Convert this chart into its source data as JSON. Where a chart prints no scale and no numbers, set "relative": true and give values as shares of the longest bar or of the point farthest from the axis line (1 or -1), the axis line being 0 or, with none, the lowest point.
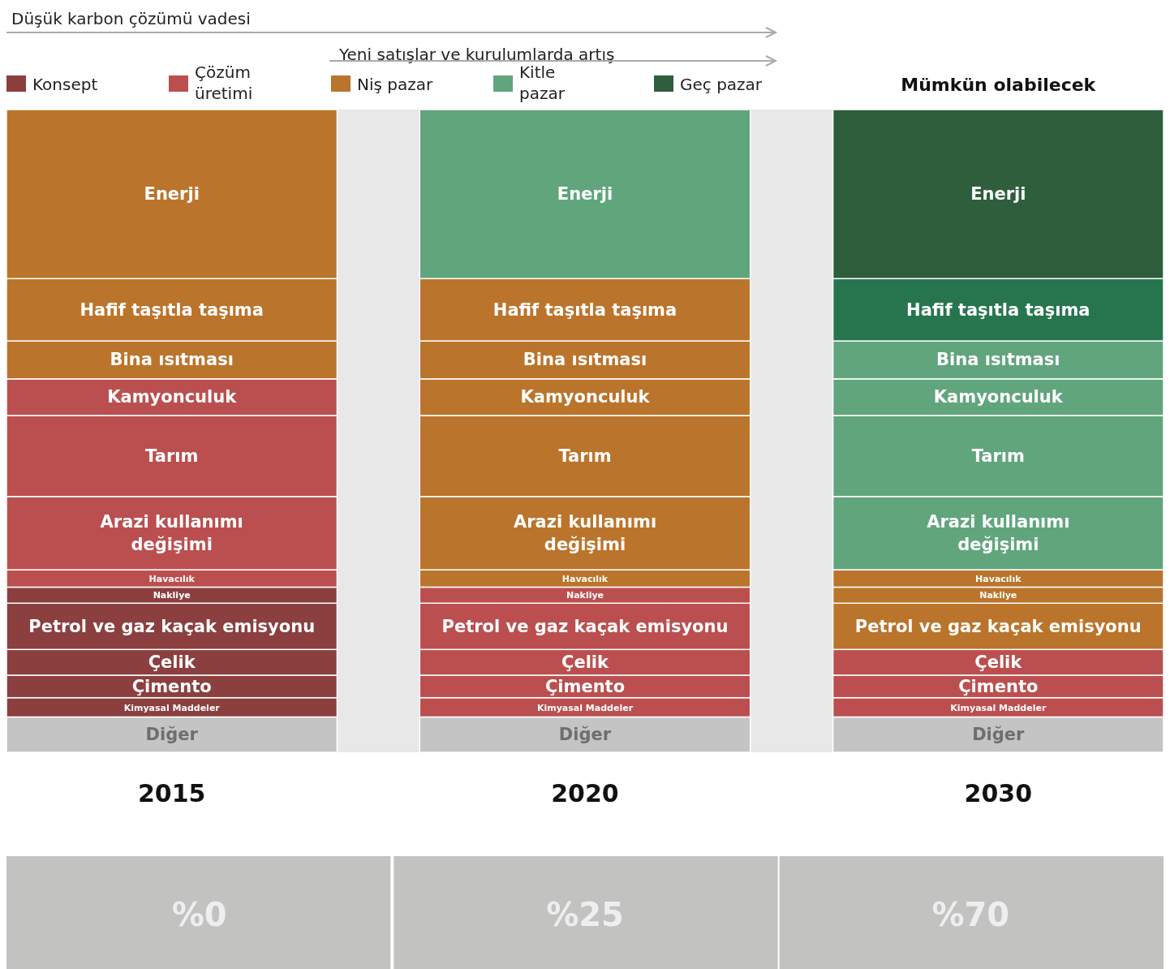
{
  "chart_data": [
    {
      "type": "other",
      "categories": [
        "Konsept",
        "Çözüm üretimi",
        "Niş pazar",
        "Kitle pazar",
        "Geç pazar"
      ],
      "colors": [
        "#8b3f3f",
        "#bb4f4f",
        "#bb742b",
        "#61a57d",
        "#2e5e3c"
      ]
    },
    {
      "type": "bar",
      "stacked": true,
      "relative": true,
      "categories": [
        "2015",
        "2020",
        "2030"
      ],
      "annotations": [
        "Düşük karbon çözümü vadesi",
        "Yeni satışlar ve kurulumlarda artış",
        "Mümkün olabilecek",
        "%0",
        "%25",
        "%70"
      ],
      "series": [
        {
          "name": "Diğer",
          "values": [
            0.055,
            0.055,
            0.055
          ],
          "colors": [
            "#c4c4c4",
            "#c4c4c4",
            "#c4c4c4"
          ]
        },
        {
          "name": "Kimyasal Maddeler",
          "values": [
            0.03,
            0.03,
            0.03
          ],
          "colors": [
            "#8b3f3f",
            "#bb4f4f",
            "#bb4f4f"
          ]
        },
        {
          "name": "Çimento",
          "values": [
            0.035,
            0.035,
            0.035
          ],
          "colors": [
            "#8b3f3f",
            "#bb4f4f",
            "#bb4f4f"
          ]
        },
        {
          "name": "Çelik",
          "values": [
            0.04,
            0.04,
            0.04
          ],
          "colors": [
            "#8b3f3f",
            "#bb4f4f",
            "#bb4f4f"
          ]
        },
        {
          "name": "Petrol ve gaz kaçak emisyonu",
          "values": [
            0.072,
            0.072,
            0.072
          ],
          "colors": [
            "#8b3f3f",
            "#bb4f4f",
            "#bb742b"
          ]
        },
        {
          "name": "Nakliye",
          "values": [
            0.025,
            0.025,
            0.025
          ],
          "colors": [
            "#8b3f3f",
            "#bb4f4f",
            "#bb742b"
          ]
        },
        {
          "name": "Havacılık",
          "values": [
            0.027,
            0.027,
            0.027
          ],
          "colors": [
            "#bb4f4f",
            "#bb742b",
            "#bb742b"
          ]
        },
        {
          "name": "Arazi kullanımı değişimi",
          "values": [
            0.114,
            0.114,
            0.114
          ],
          "colors": [
            "#bb4f4f",
            "#bb742b",
            "#61a57d"
          ]
        },
        {
          "name": "Tarım",
          "values": [
            0.126,
            0.126,
            0.126
          ],
          "colors": [
            "#bb4f4f",
            "#bb742b",
            "#61a57d"
          ]
        },
        {
          "name": "Kamyonculuk",
          "values": [
            0.057,
            0.057,
            0.057
          ],
          "colors": [
            "#bb4f4f",
            "#bb742b",
            "#61a57d"
          ]
        },
        {
          "name": "Bina ısıtması",
          "values": [
            0.059,
            0.059,
            0.059
          ],
          "colors": [
            "#bb742b",
            "#bb742b",
            "#61a57d"
          ]
        },
        {
          "name": "Hafif taşıtla taşıma",
          "values": [
            0.097,
            0.097,
            0.097
          ],
          "colors": [
            "#bb742b",
            "#bb742b",
            "#27754f"
          ]
        },
        {
          "name": "Enerji",
          "values": [
            0.263,
            0.263,
            0.263
          ],
          "colors": [
            "#bb742b",
            "#61a57d",
            "#2e5e3c"
          ]
        }
      ]
    }
  ]
}
